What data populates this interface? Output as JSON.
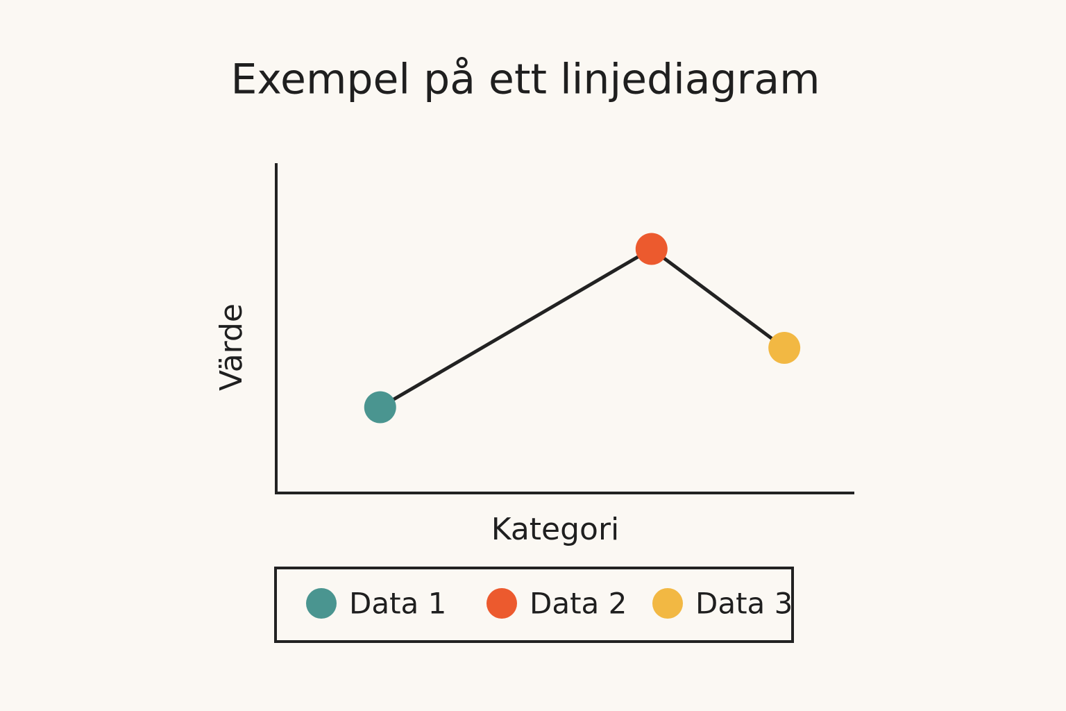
{
  "chart_data": {
    "type": "line",
    "title": "Exempel på ett linjediagram",
    "xlabel": "Kategori",
    "ylabel": "Värde",
    "x": [
      18,
      65,
      88
    ],
    "values": [
      26,
      74,
      44
    ],
    "xlim": [
      0,
      100
    ],
    "ylim": [
      0,
      100
    ],
    "color": "#222222",
    "marker_colors": [
      "#4a9590",
      "#ec5a2e",
      "#f2b843"
    ],
    "legend": [
      "Data 1",
      "Data 2",
      "Data 3"
    ],
    "grid": false
  }
}
